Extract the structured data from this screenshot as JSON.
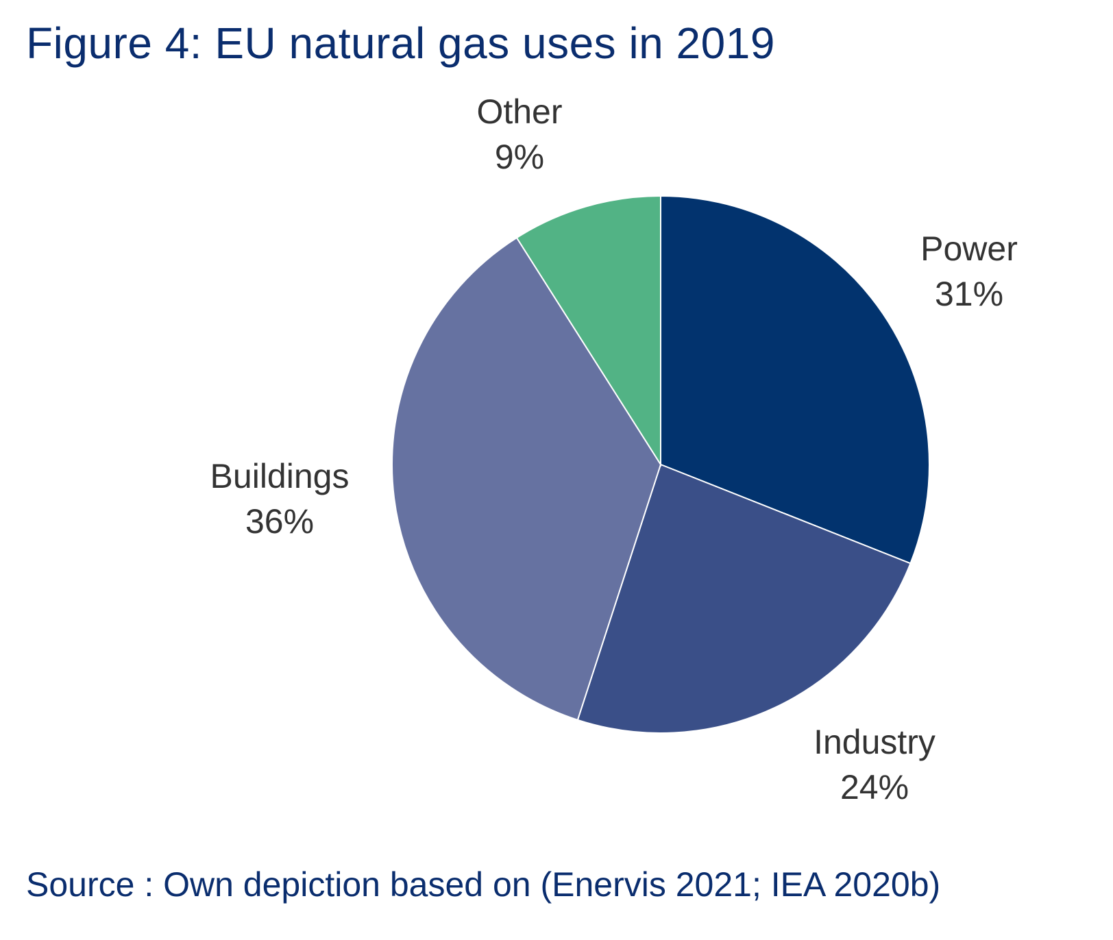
{
  "figure": {
    "title": "Figure 4: EU natural gas uses in 2019",
    "source": "Source : Own depiction based on (Enervis 2021; IEA 2020b)"
  },
  "chart_data": {
    "type": "pie",
    "title": "Figure 4: EU natural gas uses in 2019",
    "start_angle_deg": 0,
    "direction": "clockwise",
    "slices": [
      {
        "label": "Power",
        "value": 31,
        "value_label": "31%",
        "color": "#02336e"
      },
      {
        "label": "Industry",
        "value": 24,
        "value_label": "24%",
        "color": "#3a4f88"
      },
      {
        "label": "Buildings",
        "value": 36,
        "value_label": "36%",
        "color": "#6672a1"
      },
      {
        "label": "Other",
        "value": 9,
        "value_label": "9%",
        "color": "#52b385"
      }
    ]
  }
}
